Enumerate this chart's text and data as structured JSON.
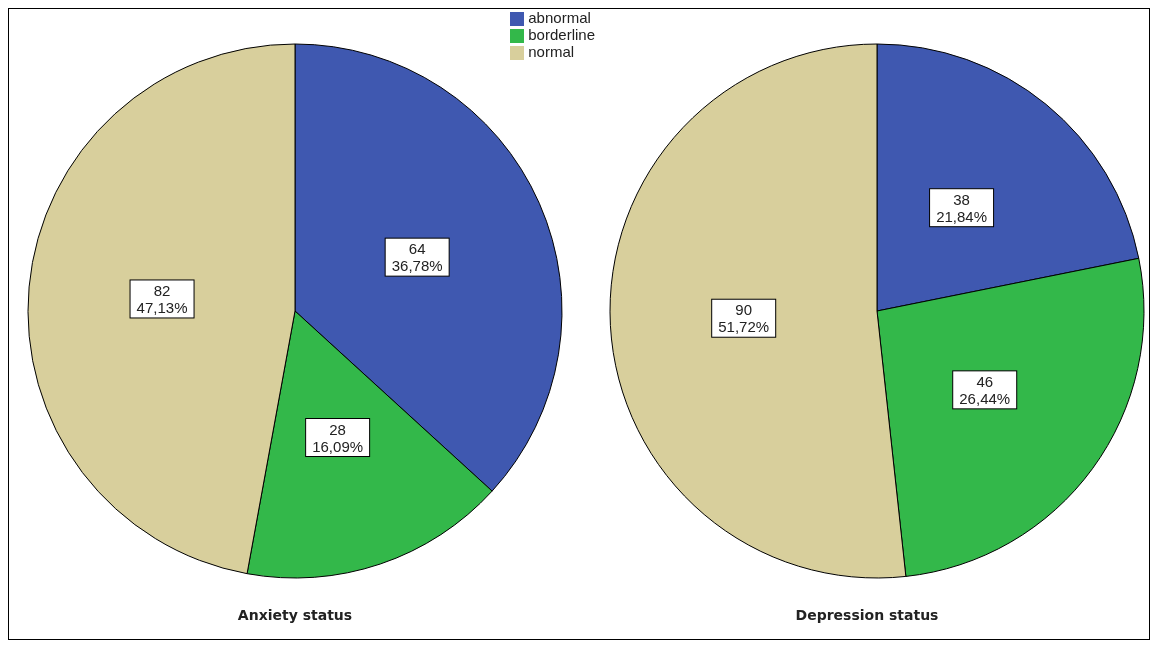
{
  "chart_data": [
    {
      "type": "pie",
      "title": "Anxiety status",
      "categories": [
        "abnormal",
        "borderline",
        "normal"
      ],
      "values": [
        64,
        28,
        82
      ],
      "colors": [
        "#3f58b0",
        "#33b84a",
        "#d8cf9c"
      ],
      "value_labels": [
        "64\n36,78%",
        "28\n16,09%",
        "82\n47,13%"
      ],
      "legend": "top right"
    },
    {
      "type": "pie",
      "title": "Depression status",
      "categories": [
        null,
        null,
        null
      ],
      "values": [
        38,
        46,
        90
      ],
      "colors": [
        "#3f58b0",
        "#33b84a",
        "#d8cf9c"
      ],
      "value_labels": [
        "38\n21,84%",
        "46\n26,44%",
        "90\n51,72%"
      ],
      "legend": false
    }
  ]
}
